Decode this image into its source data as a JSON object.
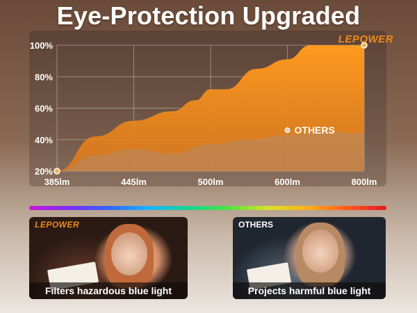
{
  "title": "Eye-Protection Upgraded",
  "brand": "LEPOWER",
  "chart_data": {
    "type": "area",
    "title": "",
    "xlabel": "",
    "ylabel": "",
    "x_categories": [
      "385lm",
      "445lm",
      "500lm",
      "600lm",
      "800lm"
    ],
    "y_ticks": [
      "20%",
      "40%",
      "60%",
      "80%",
      "100%"
    ],
    "ylim": [
      20,
      100
    ],
    "grid": true,
    "series": [
      {
        "name": "LEPOWER",
        "color": "#f7931e",
        "points": [
          {
            "x": 0.0,
            "y": 20
          },
          {
            "x": 0.5,
            "y": 42
          },
          {
            "x": 1.0,
            "y": 52
          },
          {
            "x": 1.5,
            "y": 58
          },
          {
            "x": 1.8,
            "y": 65
          },
          {
            "x": 2.0,
            "y": 72
          },
          {
            "x": 2.2,
            "y": 72
          },
          {
            "x": 2.6,
            "y": 85
          },
          {
            "x": 3.0,
            "y": 91
          },
          {
            "x": 3.3,
            "y": 100
          },
          {
            "x": 4.0,
            "y": 100
          }
        ]
      },
      {
        "name": "OTHERS",
        "color": "#b58a6a",
        "points": [
          {
            "x": 0.0,
            "y": 20
          },
          {
            "x": 0.5,
            "y": 30
          },
          {
            "x": 1.0,
            "y": 34
          },
          {
            "x": 1.5,
            "y": 31
          },
          {
            "x": 2.0,
            "y": 37
          },
          {
            "x": 2.5,
            "y": 40
          },
          {
            "x": 3.0,
            "y": 43
          },
          {
            "x": 3.5,
            "y": 45
          },
          {
            "x": 4.0,
            "y": 44
          }
        ]
      }
    ],
    "markers": [
      {
        "x": 0.0,
        "y": 20
      },
      {
        "x": 4.0,
        "y": 100
      }
    ],
    "annotation": {
      "label": "OTHERS",
      "x": 3.0,
      "y": 46
    }
  },
  "panels": {
    "left": {
      "badge": "LEPOWER",
      "caption": "Filters hazardous blue light"
    },
    "right": {
      "badge": "OTHERS",
      "caption": "Projects harmful blue light"
    }
  }
}
